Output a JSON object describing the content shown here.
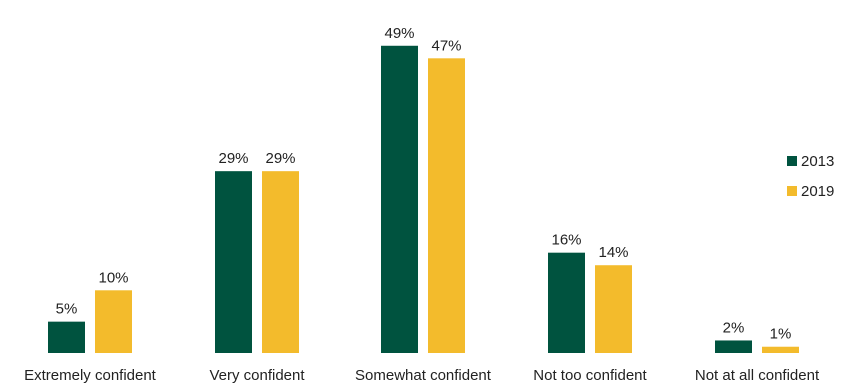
{
  "chart_data": {
    "type": "bar",
    "categories": [
      "Extremely confident",
      "Very confident",
      "Somewhat confident",
      "Not too confident",
      "Not at all confident"
    ],
    "series": [
      {
        "name": "2013",
        "values": [
          5,
          29,
          49,
          16,
          2
        ],
        "labels": [
          "5%",
          "29%",
          "49%",
          "16%",
          "2%"
        ],
        "color": "#00533f"
      },
      {
        "name": "2019",
        "values": [
          10,
          29,
          47,
          14,
          1
        ],
        "labels": [
          "10%",
          "29%",
          "47%",
          "14%",
          "1%"
        ],
        "color": "#f3bb2c"
      }
    ],
    "ylim": [
      0,
      50
    ],
    "grid": false,
    "legend": "right"
  }
}
